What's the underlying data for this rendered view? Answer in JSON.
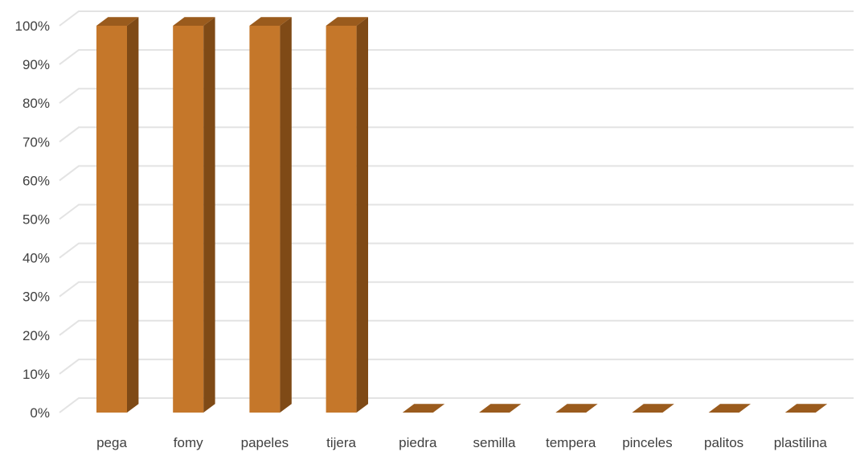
{
  "chart_data": {
    "type": "bar",
    "style": "3d-column",
    "categories": [
      "pega",
      "fomy",
      "papeles",
      "tijera",
      "piedra",
      "semilla",
      "tempera",
      "pinceles",
      "palitos",
      "plastilina"
    ],
    "values": [
      1.0,
      1.0,
      1.0,
      1.0,
      0,
      0,
      0,
      0,
      0,
      0
    ],
    "ylim": [
      0,
      1
    ],
    "yticks": [
      0,
      0.1,
      0.2,
      0.3,
      0.4,
      0.5,
      0.6,
      0.7,
      0.8,
      0.9,
      1.0
    ],
    "ytick_labels": [
      "0%",
      "10%",
      "20%",
      "30%",
      "40%",
      "50%",
      "60%",
      "70%",
      "80%",
      "90%",
      "100%"
    ],
    "grid": true,
    "legend": "none",
    "colors": {
      "front": "#c5772a",
      "top": "#9a5b1d",
      "side": "#7f4a16",
      "grid": "#e3e3e3",
      "text": "#404040"
    }
  }
}
